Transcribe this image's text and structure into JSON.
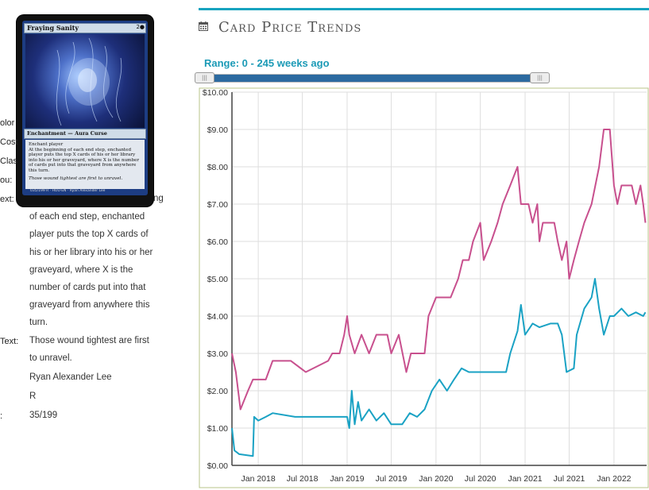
{
  "card": {
    "name": "Fraying Sanity",
    "mana": "2●",
    "type_line": "Enchantment — Aura Curse",
    "rules": [
      "Enchant player",
      "At the beginning of each end step, enchanted player puts the top X cards of his or her library into his or her graveyard, where X is the number of cards put into that graveyard from anywhere this turn."
    ],
    "flavor": "Those wound tightest are first to unravel.",
    "footer": "035/199 R · HOU·EN · Ryan Alexander Lee"
  },
  "details": {
    "labels": [
      "olor",
      "Cost",
      "Clas",
      "ou:",
      "ext:",
      "Text:"
    ],
    "rules_text_tail": "ng",
    "rules_text_lines": [
      "of each end step, enchanted",
      "player puts the top X cards of",
      "his or her library into his or her",
      "graveyard, where X is the",
      "number of cards put into that",
      "graveyard from anywhere this",
      "turn."
    ],
    "flavor_lines": [
      "Those wound tightest are first",
      "to unravel."
    ],
    "artist": "Ryan Alexander Lee",
    "rarity": "R",
    "number_label": ":",
    "number": "35/199"
  },
  "panel": {
    "title": "Card Price Trends",
    "calendar_icon": "calendar-icon",
    "range_text": "Range: 0 - 245 weeks ago",
    "accent": "#17a3bf"
  },
  "slider": {
    "min_weeks": 0,
    "max_weeks": 245,
    "handle_glyph": "|||"
  },
  "chart_data": {
    "type": "line",
    "ylim": [
      0,
      10
    ],
    "yticks": [
      "$0.00",
      "$1.00",
      "$2.00",
      "$3.00",
      "$4.00",
      "$5.00",
      "$6.00",
      "$7.00",
      "$8.00",
      "$9.00",
      "$10.00"
    ],
    "xlim": [
      "2017-09-15",
      "2022-05-15"
    ],
    "xticks": [
      {
        "date": "2018-01-01",
        "label": "Jan 2018"
      },
      {
        "date": "2018-07-01",
        "label": "Jul 2018"
      },
      {
        "date": "2019-01-01",
        "label": "Jan 2019"
      },
      {
        "date": "2019-07-01",
        "label": "Jul 2019"
      },
      {
        "date": "2020-01-01",
        "label": "Jan 2020"
      },
      {
        "date": "2020-07-01",
        "label": "Jul 2020"
      },
      {
        "date": "2021-01-01",
        "label": "Jan 2021"
      },
      {
        "date": "2021-07-01",
        "label": "Jul 2021"
      },
      {
        "date": "2022-01-01",
        "label": "Jan 2022"
      }
    ],
    "grid": true,
    "series": [
      {
        "color": "#c8508e",
        "points": [
          [
            "2017-09-15",
            3.0
          ],
          [
            "2017-10-01",
            2.5
          ],
          [
            "2017-10-20",
            1.5
          ],
          [
            "2017-11-20",
            2.0
          ],
          [
            "2017-12-10",
            2.3
          ],
          [
            "2018-02-01",
            2.3
          ],
          [
            "2018-03-01",
            2.8
          ],
          [
            "2018-05-15",
            2.8
          ],
          [
            "2018-07-15",
            2.5
          ],
          [
            "2018-10-15",
            2.8
          ],
          [
            "2018-11-01",
            3.0
          ],
          [
            "2018-12-01",
            3.0
          ],
          [
            "2018-12-20",
            3.5
          ],
          [
            "2019-01-01",
            4.0
          ],
          [
            "2019-01-10",
            3.5
          ],
          [
            "2019-02-01",
            3.0
          ],
          [
            "2019-03-01",
            3.5
          ],
          [
            "2019-04-01",
            3.0
          ],
          [
            "2019-05-01",
            3.5
          ],
          [
            "2019-06-15",
            3.5
          ],
          [
            "2019-07-01",
            3.0
          ],
          [
            "2019-08-01",
            3.5
          ],
          [
            "2019-09-01",
            2.5
          ],
          [
            "2019-09-20",
            3.0
          ],
          [
            "2019-11-15",
            3.0
          ],
          [
            "2019-12-01",
            4.0
          ],
          [
            "2020-01-01",
            4.5
          ],
          [
            "2020-03-01",
            4.5
          ],
          [
            "2020-04-01",
            5.0
          ],
          [
            "2020-04-20",
            5.5
          ],
          [
            "2020-05-15",
            5.5
          ],
          [
            "2020-06-01",
            6.0
          ],
          [
            "2020-07-01",
            6.5
          ],
          [
            "2020-07-15",
            5.5
          ],
          [
            "2020-08-15",
            6.0
          ],
          [
            "2020-09-10",
            6.5
          ],
          [
            "2020-10-01",
            7.0
          ],
          [
            "2020-11-01",
            7.5
          ],
          [
            "2020-12-01",
            8.0
          ],
          [
            "2020-12-15",
            7.0
          ],
          [
            "2021-01-15",
            7.0
          ],
          [
            "2021-02-01",
            6.5
          ],
          [
            "2021-02-20",
            7.0
          ],
          [
            "2021-03-01",
            6.0
          ],
          [
            "2021-03-15",
            6.5
          ],
          [
            "2021-05-01",
            6.5
          ],
          [
            "2021-05-15",
            6.0
          ],
          [
            "2021-06-01",
            5.5
          ],
          [
            "2021-06-20",
            6.0
          ],
          [
            "2021-07-01",
            5.0
          ],
          [
            "2021-07-20",
            5.5
          ],
          [
            "2021-08-10",
            6.0
          ],
          [
            "2021-09-01",
            6.5
          ],
          [
            "2021-10-01",
            7.0
          ],
          [
            "2021-11-01",
            8.0
          ],
          [
            "2021-11-20",
            9.0
          ],
          [
            "2021-12-15",
            9.0
          ],
          [
            "2022-01-01",
            7.5
          ],
          [
            "2022-01-15",
            7.0
          ],
          [
            "2022-02-01",
            7.5
          ],
          [
            "2022-03-15",
            7.5
          ],
          [
            "2022-04-01",
            7.0
          ],
          [
            "2022-04-20",
            7.5
          ],
          [
            "2022-05-01",
            7.0
          ],
          [
            "2022-05-10",
            6.5
          ]
        ]
      },
      {
        "color": "#1aa2c4",
        "points": [
          [
            "2017-09-15",
            1.0
          ],
          [
            "2017-09-25",
            0.4
          ],
          [
            "2017-10-15",
            0.3
          ],
          [
            "2017-12-10",
            0.25
          ],
          [
            "2017-12-15",
            1.3
          ],
          [
            "2018-01-01",
            1.2
          ],
          [
            "2018-02-01",
            1.3
          ],
          [
            "2018-03-01",
            1.4
          ],
          [
            "2018-06-01",
            1.3
          ],
          [
            "2018-12-01",
            1.3
          ],
          [
            "2019-01-01",
            1.3
          ],
          [
            "2019-01-10",
            1.0
          ],
          [
            "2019-01-20",
            2.0
          ],
          [
            "2019-02-01",
            1.1
          ],
          [
            "2019-02-15",
            1.7
          ],
          [
            "2019-03-01",
            1.2
          ],
          [
            "2019-04-01",
            1.5
          ],
          [
            "2019-05-01",
            1.2
          ],
          [
            "2019-06-01",
            1.4
          ],
          [
            "2019-07-01",
            1.1
          ],
          [
            "2019-08-15",
            1.1
          ],
          [
            "2019-09-15",
            1.4
          ],
          [
            "2019-10-15",
            1.3
          ],
          [
            "2019-11-15",
            1.5
          ],
          [
            "2019-12-15",
            2.0
          ],
          [
            "2020-01-15",
            2.3
          ],
          [
            "2020-02-15",
            2.0
          ],
          [
            "2020-03-15",
            2.3
          ],
          [
            "2020-04-15",
            2.6
          ],
          [
            "2020-05-15",
            2.5
          ],
          [
            "2020-10-15",
            2.5
          ],
          [
            "2020-11-01",
            3.0
          ],
          [
            "2020-12-01",
            3.6
          ],
          [
            "2020-12-15",
            4.3
          ],
          [
            "2021-01-01",
            3.5
          ],
          [
            "2021-02-01",
            3.8
          ],
          [
            "2021-03-01",
            3.7
          ],
          [
            "2021-04-15",
            3.8
          ],
          [
            "2021-05-15",
            3.8
          ],
          [
            "2021-06-01",
            3.5
          ],
          [
            "2021-06-20",
            2.5
          ],
          [
            "2021-07-20",
            2.6
          ],
          [
            "2021-08-01",
            3.5
          ],
          [
            "2021-09-01",
            4.2
          ],
          [
            "2021-10-01",
            4.5
          ],
          [
            "2021-10-15",
            5.0
          ],
          [
            "2021-11-01",
            4.2
          ],
          [
            "2021-11-20",
            3.5
          ],
          [
            "2021-12-15",
            4.0
          ],
          [
            "2022-01-01",
            4.0
          ],
          [
            "2022-02-01",
            4.2
          ],
          [
            "2022-03-01",
            4.0
          ],
          [
            "2022-04-01",
            4.1
          ],
          [
            "2022-05-01",
            4.0
          ],
          [
            "2022-05-10",
            4.1
          ]
        ]
      }
    ]
  }
}
